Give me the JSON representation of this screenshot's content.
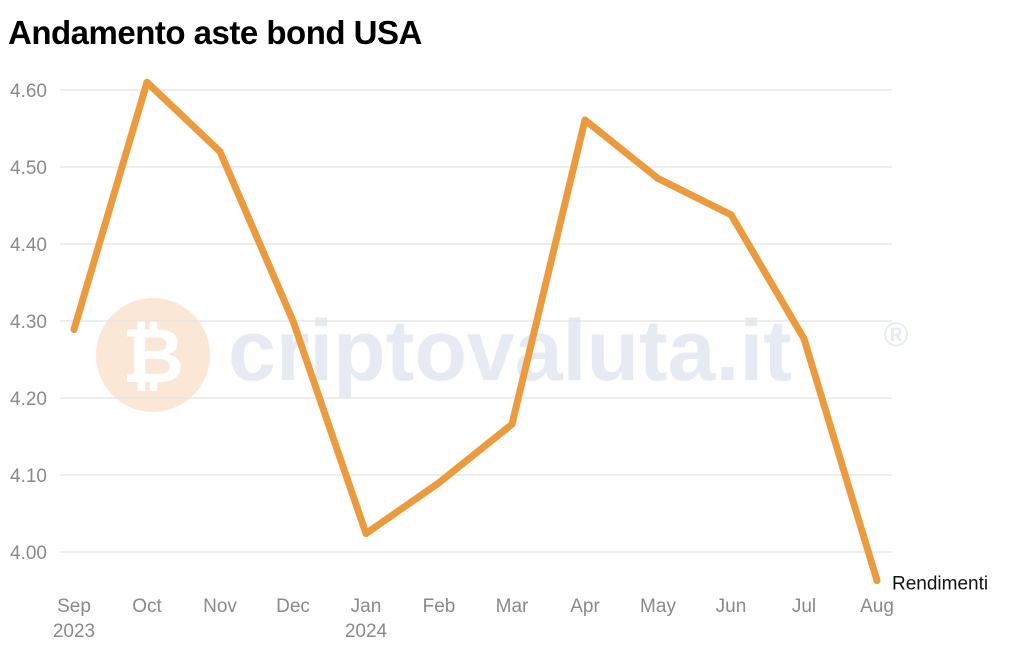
{
  "chart_data": {
    "type": "line",
    "title": "Andamento aste bond USA",
    "categories": [
      "Sep",
      "Oct",
      "Nov",
      "Dec",
      "Jan",
      "Feb",
      "Mar",
      "Apr",
      "May",
      "Jun",
      "Jul",
      "Aug"
    ],
    "year_labels": {
      "0": "2023",
      "4": "2024"
    },
    "series": [
      {
        "name": "Rendimenti",
        "values": [
          4.289,
          4.61,
          4.52,
          4.3,
          4.024,
          4.09,
          4.166,
          4.561,
          4.485,
          4.438,
          4.277,
          3.963
        ],
        "color": "#ec9a3e"
      }
    ],
    "y_ticks": [
      "4.00",
      "4.10",
      "4.20",
      "4.30",
      "4.40",
      "4.50",
      "4.60"
    ],
    "ylim": [
      3.95,
      4.66
    ],
    "grid": true,
    "series_label_position": "end-of-line"
  },
  "watermark": {
    "text": "criptovaluta.it",
    "registered_mark": "®"
  },
  "colors": {
    "line": "#ec9a3e",
    "grid": "#e3e3e3",
    "axis_text": "#8a8a8a",
    "watermark_text": "#e6ebf3",
    "watermark_logo": "#fbe7d6"
  }
}
